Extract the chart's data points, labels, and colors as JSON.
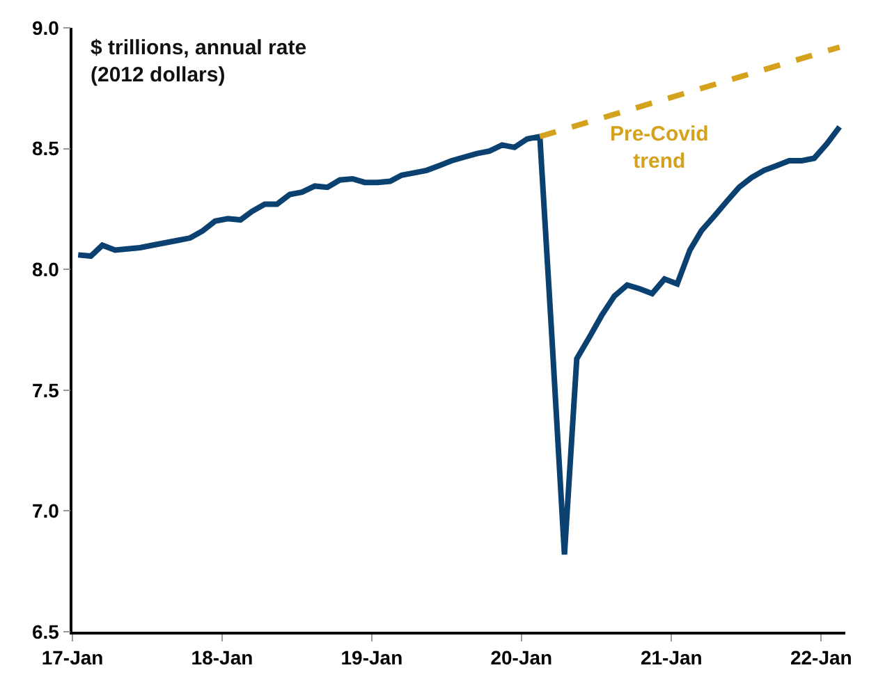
{
  "chart_data": {
    "type": "line",
    "ylabel": "$ trillions, annual rate\n(2012 dollars)",
    "annotations": [
      "Pre-Covid\ntrend"
    ],
    "series": [
      {
        "color": "#0b4170",
        "line_style": "solid",
        "x": [
          "2017-01-15",
          "2017-02-15",
          "2017-03-15",
          "2017-04-15",
          "2017-05-15",
          "2017-06-15",
          "2017-07-15",
          "2017-08-15",
          "2017-09-15",
          "2017-10-15",
          "2017-11-15",
          "2017-12-15",
          "2018-01-15",
          "2018-02-15",
          "2018-03-15",
          "2018-04-15",
          "2018-05-15",
          "2018-06-15",
          "2018-07-15",
          "2018-08-15",
          "2018-09-15",
          "2018-10-15",
          "2018-11-15",
          "2018-12-15",
          "2019-01-15",
          "2019-02-15",
          "2019-03-15",
          "2019-04-15",
          "2019-05-15",
          "2019-06-15",
          "2019-07-15",
          "2019-08-15",
          "2019-09-15",
          "2019-10-15",
          "2019-11-15",
          "2019-12-15",
          "2020-01-15",
          "2020-02-15",
          "2020-03-15",
          "2020-04-15",
          "2020-05-15",
          "2020-06-15",
          "2020-07-15",
          "2020-08-15",
          "2020-09-15",
          "2020-10-15",
          "2020-11-15",
          "2020-12-15",
          "2021-01-15",
          "2021-02-15",
          "2021-03-15",
          "2021-04-15",
          "2021-05-15",
          "2021-06-15",
          "2021-07-15",
          "2021-08-15",
          "2021-09-15",
          "2021-10-15",
          "2021-11-15",
          "2021-12-15",
          "2022-01-15",
          "2022-02-15"
        ],
        "values": [
          8.06,
          8.055,
          8.1,
          8.08,
          8.085,
          8.09,
          8.1,
          8.11,
          8.12,
          8.13,
          8.16,
          8.2,
          8.21,
          8.205,
          8.24,
          8.27,
          8.27,
          8.31,
          8.32,
          8.345,
          8.34,
          8.37,
          8.375,
          8.36,
          8.36,
          8.365,
          8.39,
          8.4,
          8.41,
          8.43,
          8.45,
          8.465,
          8.48,
          8.49,
          8.515,
          8.505,
          8.54,
          8.55,
          7.73,
          6.82,
          7.63,
          7.72,
          7.81,
          7.89,
          7.935,
          7.92,
          7.9,
          7.96,
          7.94,
          8.08,
          8.16,
          8.22,
          8.28,
          8.34,
          8.38,
          8.41,
          8.43,
          8.45,
          8.45,
          8.46,
          8.52,
          8.59
        ]
      },
      {
        "color": "#d4a21c",
        "line_style": "dashed",
        "x": [
          "2020-02-15",
          "2022-02-15"
        ],
        "values": [
          8.55,
          8.92
        ]
      }
    ],
    "xlim": [
      "2017-01-01",
      "2022-03-01"
    ],
    "xticks": [
      {
        "value": "2017-01-01",
        "label": "17-Jan"
      },
      {
        "value": "2018-01-01",
        "label": "18-Jan"
      },
      {
        "value": "2019-01-01",
        "label": "19-Jan"
      },
      {
        "value": "2020-01-01",
        "label": "20-Jan"
      },
      {
        "value": "2021-01-01",
        "label": "21-Jan"
      },
      {
        "value": "2022-01-01",
        "label": "22-Jan"
      }
    ],
    "ylim": [
      6.5,
      9.0
    ],
    "yticks": [
      6.5,
      {
        "value": 7.0,
        "label": "7.0"
      },
      7.5,
      {
        "value": 8.0,
        "label": "8.0"
      },
      8.5,
      {
        "value": 9.0,
        "label": "9.0"
      }
    ],
    "grid": false
  }
}
